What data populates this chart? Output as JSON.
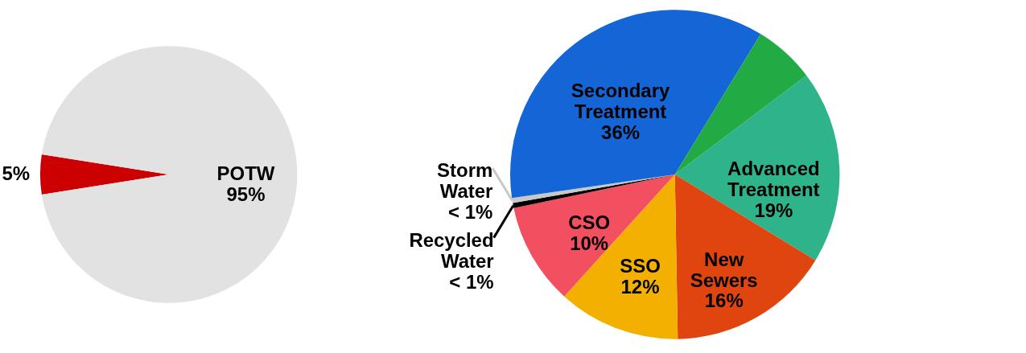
{
  "chart_data": [
    {
      "type": "pie",
      "categories": [
        null,
        "POTW"
      ],
      "values": [
        5,
        95
      ],
      "colors": [
        "#cc0000",
        "#e2e2e2"
      ],
      "value_labels": [
        "5%",
        "95%"
      ]
    },
    {
      "type": "pie",
      "categories": [
        "Advanced Treatment",
        "New Sewers",
        "SSO",
        "CSO",
        "Recycled Water",
        "Storm Water",
        "Secondary Treatment",
        null
      ],
      "values": [
        19,
        16,
        12,
        10,
        0.5,
        0.5,
        36,
        6
      ],
      "colors": [
        "#2fb38a",
        "#e0440f",
        "#f4b000",
        "#f25060",
        "#000000",
        "#c8c8c8",
        "#1466d6",
        "#22aa44"
      ],
      "value_labels": [
        "19%",
        "16%",
        "12%",
        "10%",
        "< 1%",
        "< 1%",
        "36%",
        null
      ]
    }
  ]
}
